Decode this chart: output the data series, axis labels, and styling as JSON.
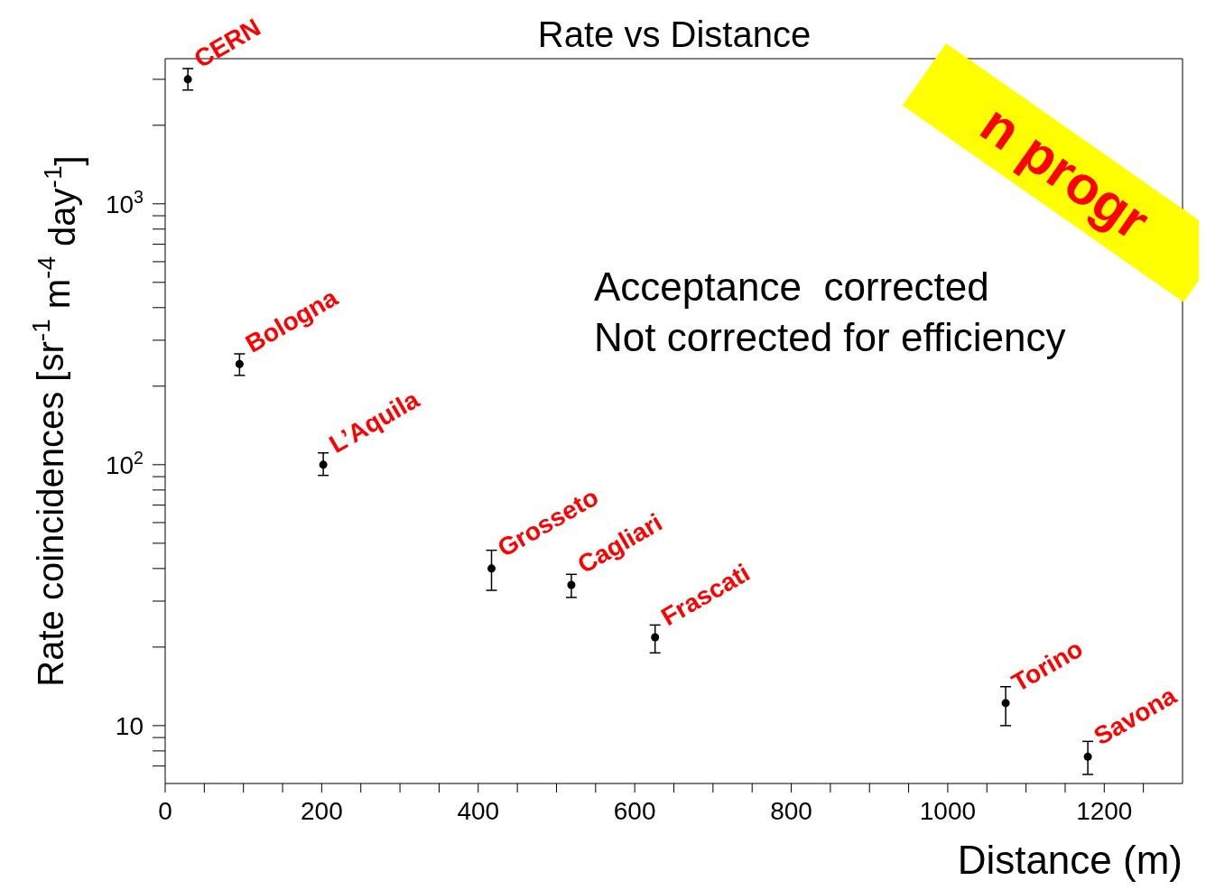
{
  "chart_data": {
    "type": "scatter",
    "title": "Rate vs Distance",
    "xlabel": "Distance (m)",
    "ylabel": "Rate coincidences [sr$^{-1}$ m$^{-4}$ day$^{-1}$]",
    "x": [
      29,
      95,
      202,
      417,
      519,
      626,
      1074,
      1179
    ],
    "series": [
      {
        "color": "#000000",
        "values": [
          3000,
          243,
          100,
          40,
          34.6,
          21.8,
          12.2,
          7.6
        ],
        "errors": [
          [
            2730,
            3300
          ],
          [
            220,
            266
          ],
          [
            91,
            111
          ],
          [
            33,
            47
          ],
          [
            31,
            38
          ],
          [
            19,
            24.3
          ],
          [
            10,
            14.1
          ],
          [
            6.5,
            8.7
          ]
        ]
      }
    ],
    "xlim": [
      0,
      1300
    ],
    "xticks": [
      0,
      {
        "value": 50,
        "label": null
      },
      {
        "value": 100,
        "label": null
      },
      {
        "value": 150,
        "label": null
      },
      200,
      {
        "value": 250,
        "label": null
      },
      {
        "value": 300,
        "label": null
      },
      {
        "value": 350,
        "label": null
      },
      400,
      {
        "value": 450,
        "label": null
      },
      {
        "value": 500,
        "label": null
      },
      {
        "value": 550,
        "label": null
      },
      600,
      {
        "value": 650,
        "label": null
      },
      {
        "value": 700,
        "label": null
      },
      {
        "value": 750,
        "label": null
      },
      800,
      {
        "value": 850,
        "label": null
      },
      {
        "value": 900,
        "label": null
      },
      {
        "value": 950,
        "label": null
      },
      1000,
      {
        "value": 1050,
        "label": null
      },
      {
        "value": 1100,
        "label": null
      },
      {
        "value": 1150,
        "label": null
      },
      1200,
      {
        "value": 1250,
        "label": null
      }
    ],
    "ylim": [
      6,
      3600
    ],
    "yticks": [
      {
        "value": 7,
        "label": null
      },
      {
        "value": 8,
        "label": null
      },
      {
        "value": 9,
        "label": null
      },
      10,
      {
        "value": 20,
        "label": null
      },
      {
        "value": 30,
        "label": null
      },
      {
        "value": 40,
        "label": null
      },
      {
        "value": 50,
        "label": null
      },
      {
        "value": 60,
        "label": null
      },
      {
        "value": 70,
        "label": null
      },
      {
        "value": 80,
        "label": null
      },
      {
        "value": 90,
        "label": null
      },
      {
        "value": 100,
        "label": "10$^{2}$"
      },
      {
        "value": 200,
        "label": null
      },
      {
        "value": 300,
        "label": null
      },
      {
        "value": 400,
        "label": null
      },
      {
        "value": 500,
        "label": null
      },
      {
        "value": 600,
        "label": null
      },
      {
        "value": 700,
        "label": null
      },
      {
        "value": 800,
        "label": null
      },
      {
        "value": 900,
        "label": null
      },
      {
        "value": 1000,
        "label": "10$^{3}$"
      },
      {
        "value": 2000,
        "label": null
      },
      {
        "value": 3000,
        "label": null
      }
    ],
    "log": "y",
    "grid": false,
    "legend": false,
    "marker": "circle",
    "annotations": [
      {
        "text": "CERN",
        "x": 29,
        "y": 3000
      },
      {
        "text": "Bologna",
        "x": 95,
        "y": 243
      },
      {
        "text": "L’Aquila",
        "x": 202,
        "y": 100
      },
      {
        "text": "Grosseto",
        "x": 417,
        "y": 40
      },
      {
        "text": "Cagliari",
        "x": 519,
        "y": 34.6
      },
      {
        "text": "Frascati",
        "x": 626,
        "y": 21.8
      },
      {
        "text": "Torino",
        "x": 1074,
        "y": 12.2
      },
      {
        "text": "Savona",
        "x": 1179,
        "y": 7.6
      },
      "Acceptance  corrected\nNot corrected for efficiency",
      "n progr"
    ]
  }
}
